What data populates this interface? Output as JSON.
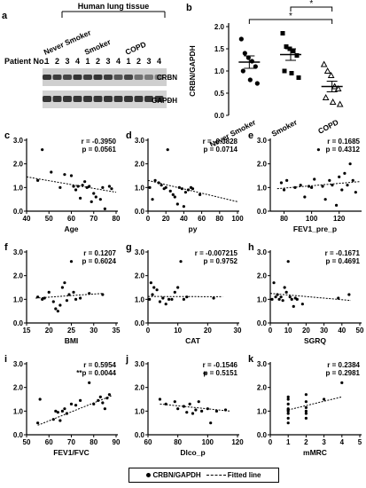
{
  "panel_a": {
    "label": "a",
    "group_header": "Human lung tissue",
    "groups": [
      "Never Smoker",
      "Smoker",
      "COPD"
    ],
    "row_label": "Patient No.",
    "patient_numbers": [
      "1",
      "2",
      "3",
      "4",
      "1",
      "2",
      "3",
      "4",
      "1",
      "2",
      "3",
      "4"
    ],
    "bands": [
      "CRBN",
      "GAPDH"
    ]
  },
  "legend": {
    "dot": "CRBN/GAPDH",
    "line": "Fitted line"
  },
  "chart_data": [
    {
      "id": "b",
      "type": "scatter",
      "label": "b",
      "ylabel": "CRBN/GAPDH",
      "ylim": [
        0,
        2.0
      ],
      "yticks": [
        "0.0",
        "0.5",
        "1.0",
        "1.5",
        "2.0"
      ],
      "categories": [
        "Never Smoker",
        "Smoker",
        "COPD"
      ],
      "markers": [
        "circle",
        "square",
        "triangle"
      ],
      "series": [
        {
          "category": "Never Smoker",
          "values": [
            1.72,
            1.4,
            1.3,
            1.22,
            1.1,
            1.0,
            0.8,
            0.72
          ],
          "mean": 1.2,
          "sem": 0.14
        },
        {
          "category": "Smoker",
          "values": [
            1.85,
            1.55,
            1.5,
            1.45,
            1.35,
            1.0,
            0.95,
            0.85
          ],
          "mean": 1.37,
          "sem": 0.13
        },
        {
          "category": "COPD",
          "values": [
            1.15,
            1.0,
            0.9,
            0.65,
            0.6,
            0.4,
            0.3,
            0.25
          ],
          "mean": 0.65,
          "sem": 0.12
        }
      ],
      "significance": [
        {
          "from": 0,
          "to": 2,
          "text": "*"
        },
        {
          "from": 1,
          "to": 2,
          "text": "*"
        }
      ]
    },
    {
      "id": "c",
      "type": "scatter",
      "label": "c",
      "xlabel": "Age",
      "xlim": [
        40,
        80
      ],
      "xticks": [
        "40",
        "50",
        "60",
        "70",
        "80"
      ],
      "ylim": [
        0,
        3
      ],
      "yticks": [
        "0.0",
        "1.0",
        "2.0",
        "3.0"
      ],
      "r": "r = -0.3950",
      "p": "p = 0.0561",
      "fit": [
        [
          40,
          1.45
        ],
        [
          80,
          0.8
        ]
      ],
      "points": [
        [
          45,
          1.3
        ],
        [
          47,
          2.6
        ],
        [
          51,
          1.65
        ],
        [
          55,
          1.0
        ],
        [
          57,
          1.55
        ],
        [
          60,
          1.5
        ],
        [
          61,
          1.05
        ],
        [
          62,
          0.9
        ],
        [
          63,
          1.05
        ],
        [
          64,
          0.55
        ],
        [
          65,
          1.1
        ],
        [
          66,
          1.25
        ],
        [
          67,
          1.0
        ],
        [
          68,
          1.05
        ],
        [
          69,
          0.4
        ],
        [
          70,
          0.75
        ],
        [
          71,
          0.6
        ],
        [
          73,
          0.5
        ],
        [
          74,
          1.0
        ],
        [
          75,
          0.1
        ],
        [
          77,
          1.05
        ],
        [
          78,
          0.95
        ]
      ]
    },
    {
      "id": "d",
      "type": "scatter",
      "label": "d",
      "xlabel": "py",
      "xlim": [
        0,
        100
      ],
      "xticks": [
        "0",
        "20",
        "40",
        "60",
        "80",
        "100"
      ],
      "ylim": [
        0,
        3
      ],
      "yticks": [
        "0.0",
        "1.0",
        "2.0",
        "3.0"
      ],
      "r": "r = -0.3828",
      "p": "p = 0.0714",
      "fit": [
        [
          0,
          1.3
        ],
        [
          100,
          0.4
        ]
      ],
      "points": [
        [
          2,
          1.0
        ],
        [
          5,
          0.5
        ],
        [
          8,
          1.3
        ],
        [
          12,
          1.2
        ],
        [
          15,
          1.1
        ],
        [
          18,
          0.95
        ],
        [
          20,
          1.0
        ],
        [
          22,
          2.6
        ],
        [
          25,
          0.85
        ],
        [
          28,
          0.7
        ],
        [
          30,
          0.6
        ],
        [
          33,
          0.3
        ],
        [
          35,
          1.0
        ],
        [
          38,
          0.95
        ],
        [
          40,
          0.2
        ],
        [
          42,
          0.8
        ],
        [
          45,
          0.9
        ],
        [
          48,
          1.0
        ],
        [
          50,
          0.95
        ],
        [
          58,
          0.7
        ]
      ]
    },
    {
      "id": "e",
      "type": "scatter",
      "label": "e",
      "xlabel": "FEV1_pre_p",
      "xlim": [
        70,
        135
      ],
      "xticks": [
        "80",
        "100",
        "120"
      ],
      "ylim": [
        0,
        3
      ],
      "yticks": [
        "0.0",
        "1.0",
        "2.0",
        "3.0"
      ],
      "r": "r = 0.1685",
      "p": "p = 0.4312",
      "fit": [
        [
          75,
          0.95
        ],
        [
          135,
          1.25
        ]
      ],
      "points": [
        [
          78,
          1.2
        ],
        [
          80,
          0.9
        ],
        [
          82,
          1.3
        ],
        [
          88,
          1.0
        ],
        [
          92,
          1.1
        ],
        [
          95,
          0.6
        ],
        [
          98,
          1.05
        ],
        [
          100,
          1.0
        ],
        [
          102,
          1.35
        ],
        [
          105,
          2.6
        ],
        [
          108,
          1.05
        ],
        [
          110,
          0.5
        ],
        [
          113,
          1.3
        ],
        [
          115,
          1.1
        ],
        [
          118,
          0.25
        ],
        [
          120,
          1.45
        ],
        [
          122,
          0.9
        ],
        [
          124,
          1.6
        ],
        [
          126,
          1.1
        ],
        [
          128,
          2.0
        ],
        [
          130,
          1.3
        ],
        [
          132,
          0.8
        ]
      ]
    },
    {
      "id": "f",
      "type": "scatter",
      "label": "f",
      "xlabel": "BMI",
      "xlim": [
        15,
        35
      ],
      "xticks": [
        "15",
        "20",
        "25",
        "30",
        "35"
      ],
      "ylim": [
        0,
        3
      ],
      "yticks": [
        "0.0",
        "1.0",
        "2.0",
        "3.0"
      ],
      "r": "r = 0.1207",
      "p": "p = 0.6024",
      "fit": [
        [
          17,
          1.05
        ],
        [
          32,
          1.25
        ]
      ],
      "points": [
        [
          17.5,
          1.1
        ],
        [
          18.5,
          1.0
        ],
        [
          19,
          1.05
        ],
        [
          20,
          1.3
        ],
        [
          21,
          0.9
        ],
        [
          21.5,
          0.6
        ],
        [
          22,
          0.5
        ],
        [
          22.5,
          0.75
        ],
        [
          23,
          1.5
        ],
        [
          23.5,
          1.7
        ],
        [
          24,
          0.95
        ],
        [
          24.5,
          1.2
        ],
        [
          25,
          2.6
        ],
        [
          25.5,
          1.3
        ],
        [
          26,
          1.0
        ],
        [
          27,
          1.05
        ],
        [
          29,
          1.25
        ],
        [
          32,
          1.2
        ]
      ]
    },
    {
      "id": "g",
      "type": "scatter",
      "label": "g",
      "xlabel": "CAT",
      "xlim": [
        0,
        30
      ],
      "xticks": [
        "0",
        "10",
        "20",
        "30"
      ],
      "ylim": [
        0,
        3
      ],
      "yticks": [
        "0.0",
        "1.0",
        "2.0",
        "3.0"
      ],
      "r": "r = -0.007215",
      "p": "p = 0.9752",
      "fit": [
        [
          0,
          1.12
        ],
        [
          25,
          1.11
        ]
      ],
      "points": [
        [
          0.5,
          1.0
        ],
        [
          1,
          1.7
        ],
        [
          1.5,
          1.2
        ],
        [
          2,
          1.5
        ],
        [
          3,
          1.4
        ],
        [
          4,
          0.9
        ],
        [
          5,
          1.05
        ],
        [
          6,
          0.8
        ],
        [
          7,
          1.0
        ],
        [
          8,
          1.0
        ],
        [
          9,
          1.3
        ],
        [
          10,
          1.5
        ],
        [
          11,
          2.6
        ],
        [
          12,
          1.0
        ],
        [
          13,
          1.1
        ],
        [
          22,
          1.05
        ]
      ]
    },
    {
      "id": "h",
      "type": "scatter",
      "label": "h",
      "xlabel": "SGRQ",
      "xlim": [
        0,
        50
      ],
      "xticks": [
        "0",
        "10",
        "20",
        "30",
        "40",
        "50"
      ],
      "ylim": [
        0,
        3
      ],
      "yticks": [
        "0.0",
        "1.0",
        "2.0",
        "3.0"
      ],
      "r": "r = -0.1671",
      "p": "p = 0.4691",
      "fit": [
        [
          0,
          1.25
        ],
        [
          45,
          0.95
        ]
      ],
      "points": [
        [
          1,
          1.0
        ],
        [
          2,
          1.7
        ],
        [
          3,
          1.1
        ],
        [
          4,
          1.2
        ],
        [
          5,
          1.0
        ],
        [
          6,
          1.1
        ],
        [
          7,
          0.95
        ],
        [
          8,
          1.5
        ],
        [
          9,
          1.3
        ],
        [
          10,
          2.6
        ],
        [
          11,
          1.1
        ],
        [
          12,
          1.0
        ],
        [
          13,
          0.7
        ],
        [
          14,
          1.05
        ],
        [
          15,
          1.0
        ],
        [
          18,
          0.8
        ],
        [
          38,
          1.05
        ],
        [
          44,
          1.2
        ]
      ]
    },
    {
      "id": "i",
      "type": "scatter",
      "label": "i",
      "xlabel": "FEV1/FVC",
      "xlim": [
        50,
        90
      ],
      "xticks": [
        "50",
        "60",
        "70",
        "80",
        "90"
      ],
      "ylim": [
        0,
        3
      ],
      "yticks": [
        "0.0",
        "1.0",
        "2.0",
        "3.0"
      ],
      "r": "r = 0.5954",
      "p": "**p = 0.0044",
      "fit": [
        [
          55,
          0.4
        ],
        [
          88,
          1.65
        ]
      ],
      "points": [
        [
          55,
          0.5
        ],
        [
          56,
          1.5
        ],
        [
          62,
          0.65
        ],
        [
          63,
          1.0
        ],
        [
          64,
          0.95
        ],
        [
          65,
          0.6
        ],
        [
          66,
          1.0
        ],
        [
          67,
          1.1
        ],
        [
          68,
          0.9
        ],
        [
          70,
          1.3
        ],
        [
          72,
          1.25
        ],
        [
          74,
          1.45
        ],
        [
          78,
          2.2
        ],
        [
          80,
          1.3
        ],
        [
          82,
          1.45
        ],
        [
          83,
          1.6
        ],
        [
          84,
          1.35
        ],
        [
          85,
          1.1
        ],
        [
          86,
          1.55
        ],
        [
          87,
          1.7
        ]
      ]
    },
    {
      "id": "j",
      "type": "scatter",
      "label": "j",
      "xlabel": "Dlco_p",
      "xlim": [
        60,
        120
      ],
      "xticks": [
        "60",
        "80",
        "100",
        "120"
      ],
      "ylim": [
        0,
        3
      ],
      "yticks": [
        "0.0",
        "1.0",
        "2.0",
        "3.0"
      ],
      "r": "r = -0.1546",
      "p": "p = 0.5151",
      "fit": [
        [
          68,
          1.3
        ],
        [
          115,
          1.0
        ]
      ],
      "points": [
        [
          68,
          1.5
        ],
        [
          72,
          1.3
        ],
        [
          78,
          1.4
        ],
        [
          80,
          1.1
        ],
        [
          84,
          1.2
        ],
        [
          86,
          0.95
        ],
        [
          88,
          1.3
        ],
        [
          90,
          0.9
        ],
        [
          92,
          1.05
        ],
        [
          94,
          1.4
        ],
        [
          96,
          1.0
        ],
        [
          98,
          2.6
        ],
        [
          100,
          1.1
        ],
        [
          102,
          0.5
        ],
        [
          106,
          1.0
        ],
        [
          112,
          1.05
        ]
      ]
    },
    {
      "id": "k",
      "type": "scatter",
      "label": "k",
      "xlabel": "mMRC",
      "xlim": [
        0,
        5
      ],
      "xticks": [
        "0",
        "1",
        "2",
        "3",
        "4",
        "5"
      ],
      "ylim": [
        0,
        3
      ],
      "yticks": [
        "0.0",
        "1.0",
        "2.0",
        "3.0"
      ],
      "r": "r = 0.2384",
      "p": "p = 0.2981",
      "fit": [
        [
          1,
          1.05
        ],
        [
          4,
          1.6
        ]
      ],
      "points": [
        [
          1,
          0.5
        ],
        [
          1,
          0.7
        ],
        [
          1,
          0.9
        ],
        [
          1,
          1.0
        ],
        [
          1,
          1.05
        ],
        [
          1,
          1.1
        ],
        [
          1,
          1.3
        ],
        [
          1,
          1.5
        ],
        [
          1,
          1.6
        ],
        [
          2,
          0.7
        ],
        [
          2,
          0.9
        ],
        [
          2,
          1.0
        ],
        [
          2,
          1.15
        ],
        [
          2,
          1.4
        ],
        [
          2,
          1.7
        ],
        [
          3,
          1.5
        ],
        [
          4,
          2.2
        ]
      ]
    }
  ]
}
